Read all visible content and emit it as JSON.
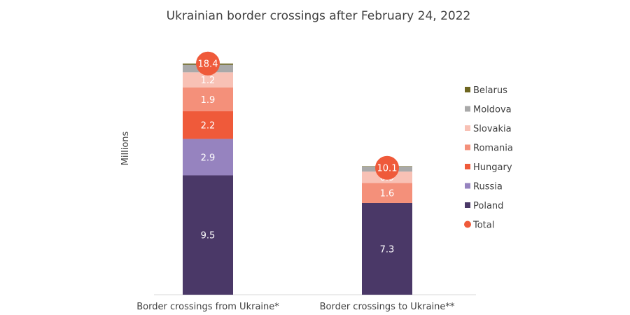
{
  "chart_data": {
    "type": "bar",
    "stacked": true,
    "title": "Ukrainian border crossings after February 24, 2022",
    "ylabel": "Millions",
    "xlabel": "",
    "ylim": [
      0,
      19.5
    ],
    "grid": false,
    "legend_position": "right",
    "categories": [
      "Border crossings from Ukraine*",
      "Border crossings to Ukraine**"
    ],
    "series": [
      {
        "name": "Poland",
        "color": "#4a3867",
        "values": [
          9.5,
          7.3
        ],
        "labels": [
          "9.5",
          "7.3"
        ]
      },
      {
        "name": "Russia",
        "color": "#9683bf",
        "values": [
          2.9,
          0
        ],
        "labels": [
          "2.9",
          ""
        ]
      },
      {
        "name": "Hungary",
        "color": "#ef5a3a",
        "values": [
          2.2,
          0
        ],
        "labels": [
          "2.2",
          ""
        ]
      },
      {
        "name": "Romania",
        "color": "#f4907a",
        "values": [
          1.9,
          1.6
        ],
        "labels": [
          "1.9",
          "1.6"
        ]
      },
      {
        "name": "Slovakia",
        "color": "#f8c1b5",
        "values": [
          1.2,
          0.9
        ],
        "labels": [
          "1.2",
          "0.9"
        ]
      },
      {
        "name": "Moldova",
        "color": "#a9a9a9",
        "values": [
          0.6,
          0.4
        ],
        "labels": [
          "",
          ""
        ]
      },
      {
        "name": "Belarus",
        "color": "#6e6620",
        "values": [
          0.1,
          0.03
        ],
        "labels": [
          "",
          ""
        ]
      }
    ],
    "totals": {
      "name": "Total",
      "color": "#ef5a3a",
      "values": [
        18.4,
        10.1
      ],
      "labels": [
        "18.4",
        "10.1"
      ]
    },
    "legend_order": [
      "Belarus",
      "Moldova",
      "Slovakia",
      "Romania",
      "Hungary",
      "Russia",
      "Poland",
      "Total"
    ]
  }
}
